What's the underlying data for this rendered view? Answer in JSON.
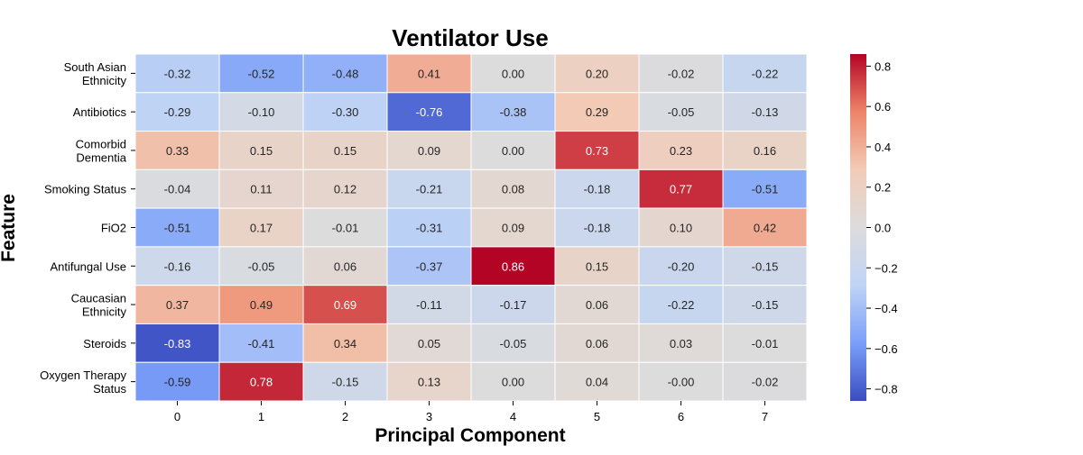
{
  "chart_data": {
    "type": "heatmap",
    "title": "Ventilator Use",
    "xlabel": "Principal Component",
    "ylabel": "Feature",
    "x_categories": [
      "0",
      "1",
      "2",
      "3",
      "4",
      "5",
      "6",
      "7"
    ],
    "y_categories": [
      "South Asian\nEthnicity",
      "Antibiotics",
      "Comorbid\nDementia",
      "Smoking Status",
      "FiO2",
      "Antifungal Use",
      "Caucasian\nEthnicity",
      "Steroids",
      "Oxygen Therapy\nStatus"
    ],
    "values": [
      [
        -0.32,
        -0.52,
        -0.48,
        0.41,
        0.0,
        0.2,
        -0.02,
        -0.22
      ],
      [
        -0.29,
        -0.1,
        -0.3,
        -0.76,
        -0.38,
        0.29,
        -0.05,
        -0.13
      ],
      [
        0.33,
        0.15,
        0.15,
        0.09,
        0.0,
        0.73,
        0.23,
        0.16
      ],
      [
        -0.04,
        0.11,
        0.12,
        -0.21,
        0.08,
        -0.18,
        0.77,
        -0.51
      ],
      [
        -0.51,
        0.17,
        -0.01,
        -0.31,
        0.09,
        -0.18,
        0.1,
        0.42
      ],
      [
        -0.16,
        -0.05,
        0.06,
        -0.37,
        0.86,
        0.15,
        -0.2,
        -0.15
      ],
      [
        0.37,
        0.49,
        0.69,
        -0.11,
        -0.17,
        0.06,
        -0.22,
        -0.15
      ],
      [
        -0.83,
        -0.41,
        0.34,
        0.05,
        -0.05,
        0.06,
        0.03,
        -0.01
      ],
      [
        -0.59,
        0.78,
        -0.15,
        0.13,
        0.0,
        0.04,
        -0.0,
        -0.02
      ]
    ],
    "value_labels": [
      [
        "-0.32",
        "-0.52",
        "-0.48",
        "0.41",
        "0.00",
        "0.20",
        "-0.02",
        "-0.22"
      ],
      [
        "-0.29",
        "-0.10",
        "-0.30",
        "-0.76",
        "-0.38",
        "0.29",
        "-0.05",
        "-0.13"
      ],
      [
        "0.33",
        "0.15",
        "0.15",
        "0.09",
        "0.00",
        "0.73",
        "0.23",
        "0.16"
      ],
      [
        "-0.04",
        "0.11",
        "0.12",
        "-0.21",
        "0.08",
        "-0.18",
        "0.77",
        "-0.51"
      ],
      [
        "-0.51",
        "0.17",
        "-0.01",
        "-0.31",
        "0.09",
        "-0.18",
        "0.10",
        "0.42"
      ],
      [
        "-0.16",
        "-0.05",
        "0.06",
        "-0.37",
        "0.86",
        "0.15",
        "-0.20",
        "-0.15"
      ],
      [
        "0.37",
        "0.49",
        "0.69",
        "-0.11",
        "-0.17",
        "0.06",
        "-0.22",
        "-0.15"
      ],
      [
        "-0.83",
        "-0.41",
        "0.34",
        "0.05",
        "-0.05",
        "0.06",
        "0.03",
        "-0.01"
      ],
      [
        "-0.59",
        "0.78",
        "-0.15",
        "0.13",
        "0.00",
        "0.04",
        "-0.00",
        "-0.02"
      ]
    ],
    "colormap": "coolwarm",
    "colormap_stops": [
      "#3b4cc0",
      "#7b9ff9",
      "#c0d4f5",
      "#dddcdc",
      "#f2cbb7",
      "#ee8468",
      "#b40426"
    ],
    "vmin": -0.86,
    "vmax": 0.86,
    "colorbar": {
      "ticks": [
        0.8,
        0.6,
        0.4,
        0.2,
        0.0,
        -0.2,
        -0.4,
        -0.6,
        -0.8
      ],
      "tick_labels": [
        "0.8",
        "0.6",
        "0.4",
        "0.2",
        "0.0",
        "−0.2",
        "−0.4",
        "−0.6",
        "−0.8"
      ]
    },
    "annotations": true,
    "grid": false,
    "cell_border_color": "#ffffff"
  }
}
